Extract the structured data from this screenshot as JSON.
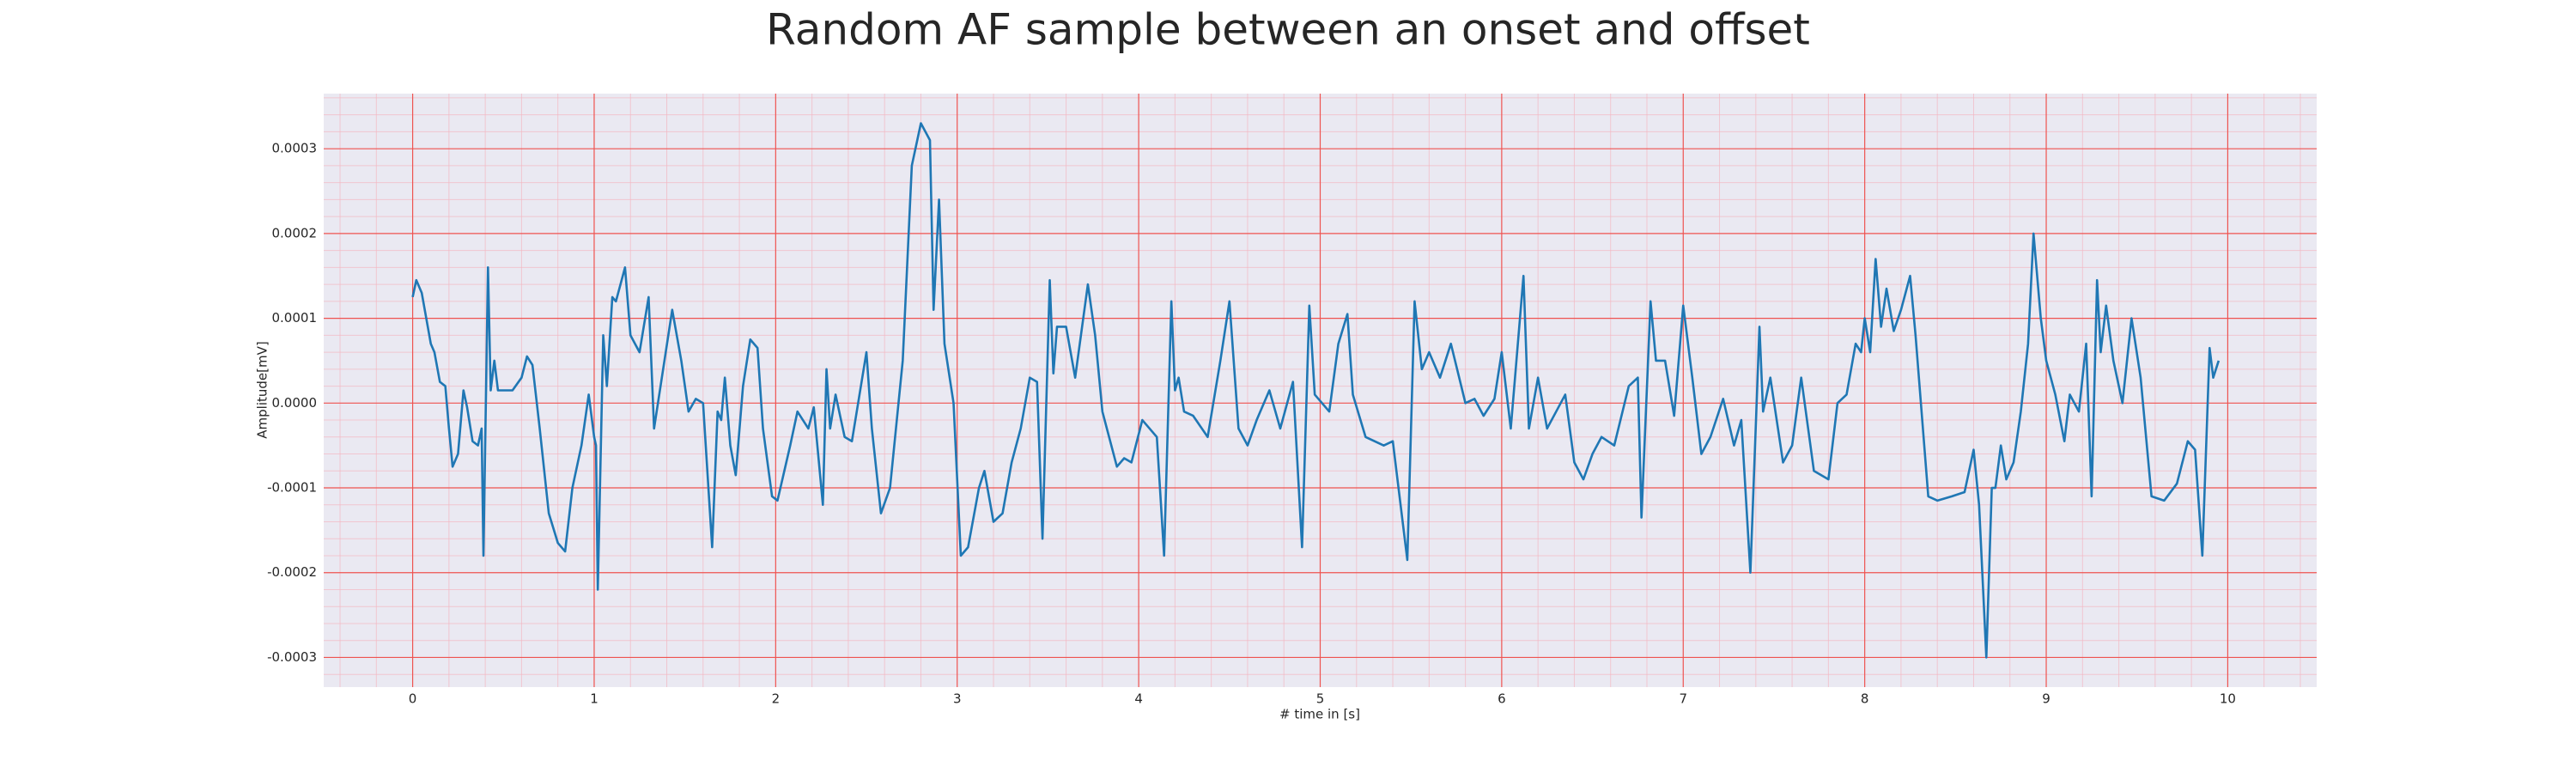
{
  "chart_data": {
    "type": "line",
    "title": "Random AF sample between an onset and offset",
    "xlabel": "# time in [s]",
    "ylabel": "Amplitude[mV]",
    "color": "#1f77b4",
    "grid": true,
    "minor_grid": true,
    "minor_divisions": 5,
    "xlim": [
      -0.49,
      10.49
    ],
    "ylim": [
      -0.000335,
      0.000365
    ],
    "xticks": [
      0,
      1,
      2,
      3,
      4,
      5,
      6,
      7,
      8,
      9,
      10
    ],
    "yticks": [
      -0.0003,
      -0.0002,
      -0.0001,
      {
        "value": 0,
        "label": "0.0000"
      },
      0.0001,
      0.0002,
      0.0003
    ],
    "x": [
      0,
      0.02,
      0.05,
      0.1,
      0.12,
      0.15,
      0.18,
      0.2,
      0.22,
      0.25,
      0.28,
      0.3,
      0.33,
      0.36,
      0.38,
      0.39,
      0.415,
      0.43,
      0.45,
      0.47,
      0.55,
      0.6,
      0.63,
      0.66,
      0.7,
      0.75,
      0.8,
      0.84,
      0.88,
      0.93,
      0.97,
      1.0,
      1.01,
      1.02,
      1.05,
      1.07,
      1.1,
      1.12,
      1.17,
      1.2,
      1.25,
      1.3,
      1.33,
      1.38,
      1.43,
      1.48,
      1.52,
      1.56,
      1.6,
      1.65,
      1.68,
      1.7,
      1.72,
      1.75,
      1.78,
      1.82,
      1.86,
      1.9,
      1.93,
      1.98,
      2.01,
      2.08,
      2.12,
      2.18,
      2.21,
      2.26,
      2.28,
      2.3,
      2.33,
      2.38,
      2.42,
      2.5,
      2.53,
      2.58,
      2.63,
      2.7,
      2.75,
      2.8,
      2.85,
      2.87,
      2.9,
      2.93,
      2.98,
      3.02,
      3.06,
      3.12,
      3.15,
      3.2,
      3.25,
      3.3,
      3.35,
      3.4,
      3.44,
      3.47,
      3.51,
      3.53,
      3.55,
      3.6,
      3.65,
      3.72,
      3.76,
      3.8,
      3.88,
      3.92,
      3.96,
      4.02,
      4.1,
      4.14,
      4.18,
      4.2,
      4.22,
      4.25,
      4.3,
      4.38,
      4.45,
      4.5,
      4.55,
      4.6,
      4.65,
      4.72,
      4.78,
      4.85,
      4.9,
      4.94,
      4.97,
      5.05,
      5.1,
      5.15,
      5.18,
      5.25,
      5.35,
      5.4,
      5.48,
      5.52,
      5.56,
      5.6,
      5.66,
      5.72,
      5.8,
      5.85,
      5.9,
      5.96,
      6.0,
      6.05,
      6.12,
      6.15,
      6.2,
      6.25,
      6.3,
      6.35,
      6.4,
      6.45,
      6.5,
      6.55,
      6.62,
      6.7,
      6.75,
      6.77,
      6.82,
      6.85,
      6.9,
      6.95,
      7.0,
      7.05,
      7.1,
      7.15,
      7.22,
      7.28,
      7.32,
      7.37,
      7.42,
      7.44,
      7.48,
      7.55,
      7.6,
      7.65,
      7.72,
      7.8,
      7.85,
      7.9,
      7.95,
      7.98,
      8.0,
      8.03,
      8.06,
      8.09,
      8.12,
      8.16,
      8.2,
      8.25,
      8.28,
      8.35,
      8.4,
      8.48,
      8.55,
      8.6,
      8.63,
      8.67,
      8.7,
      8.72,
      8.75,
      8.78,
      8.82,
      8.86,
      8.9,
      8.93,
      8.97,
      9.0,
      9.05,
      9.1,
      9.13,
      9.18,
      9.22,
      9.25,
      9.28,
      9.3,
      9.33,
      9.37,
      9.42,
      9.47,
      9.52,
      9.58,
      9.65,
      9.72,
      9.78,
      9.82,
      9.86,
      9.9,
      9.92,
      9.95
    ],
    "values": [
      0.000125,
      0.000145,
      0.00013,
      7e-05,
      6e-05,
      2.5e-05,
      2e-05,
      -3e-05,
      -7.5e-05,
      -6e-05,
      1.5e-05,
      -5e-06,
      -4.5e-05,
      -5e-05,
      -3e-05,
      -0.00018,
      0.00016,
      1.5e-05,
      5e-05,
      1.5e-05,
      1.5e-05,
      3e-05,
      5.5e-05,
      4.5e-05,
      -3e-05,
      -0.00013,
      -0.000165,
      -0.000175,
      -0.0001,
      -5e-05,
      1e-05,
      -4e-05,
      -5e-05,
      -0.00022,
      8e-05,
      2e-05,
      0.000125,
      0.00012,
      0.00016,
      8e-05,
      6e-05,
      0.000125,
      -3e-05,
      4e-05,
      0.00011,
      5e-05,
      -1e-05,
      5e-06,
      0,
      -0.00017,
      -1e-05,
      -2e-05,
      3e-05,
      -5e-05,
      -8.5e-05,
      2e-05,
      7.5e-05,
      6.5e-05,
      -3e-05,
      -0.00011,
      -0.000115,
      -5e-05,
      -1e-05,
      -3e-05,
      -5e-06,
      -0.00012,
      4e-05,
      -3e-05,
      1e-05,
      -4e-05,
      -4.5e-05,
      6e-05,
      -3e-05,
      -0.00013,
      -0.0001,
      5e-05,
      0.00028,
      0.00033,
      0.00031,
      0.00011,
      0.00024,
      7e-05,
      0,
      -0.00018,
      -0.00017,
      -0.0001,
      -8e-05,
      -0.00014,
      -0.00013,
      -7e-05,
      -3e-05,
      3e-05,
      2.5e-05,
      -0.00016,
      0.000145,
      3.5e-05,
      9e-05,
      9e-05,
      3e-05,
      0.00014,
      8e-05,
      -1e-05,
      -7.5e-05,
      -6.5e-05,
      -7e-05,
      -2e-05,
      -4e-05,
      -0.00018,
      0.00012,
      1.5e-05,
      3e-05,
      -1e-05,
      -1.5e-05,
      -4e-05,
      5e-05,
      0.00012,
      -3e-05,
      -5e-05,
      -2e-05,
      1.5e-05,
      -3e-05,
      2.5e-05,
      -0.00017,
      0.000115,
      1e-05,
      -1e-05,
      7e-05,
      0.000105,
      1e-05,
      -4e-05,
      -5e-05,
      -4.5e-05,
      -0.000185,
      0.00012,
      4e-05,
      6e-05,
      3e-05,
      7e-05,
      0,
      5e-06,
      -1.5e-05,
      5e-06,
      6e-05,
      -3e-05,
      0.00015,
      -3e-05,
      3e-05,
      -3e-05,
      -1e-05,
      1e-05,
      -7e-05,
      -9e-05,
      -6e-05,
      -4e-05,
      -5e-05,
      2e-05,
      3e-05,
      -0.000135,
      0.00012,
      5e-05,
      5e-05,
      -1.5e-05,
      0.000115,
      3e-05,
      -6e-05,
      -4e-05,
      5e-06,
      -5e-05,
      -2e-05,
      -0.0002,
      9e-05,
      -1e-05,
      3e-05,
      -7e-05,
      -5e-05,
      3e-05,
      -8e-05,
      -9e-05,
      0,
      1e-05,
      7e-05,
      6e-05,
      0.0001,
      6e-05,
      0.00017,
      9e-05,
      0.000135,
      8.5e-05,
      0.00011,
      0.00015,
      8e-05,
      -0.00011,
      -0.000115,
      -0.00011,
      -0.000105,
      -5.5e-05,
      -0.00012,
      -0.0003,
      -0.0001,
      -0.0001,
      -5e-05,
      -9e-05,
      -7e-05,
      -1e-05,
      7e-05,
      0.0002,
      0.0001,
      5e-05,
      1e-05,
      -4.5e-05,
      1e-05,
      -1e-05,
      7e-05,
      -0.00011,
      0.000145,
      6e-05,
      0.000115,
      5e-05,
      0,
      0.0001,
      3e-05,
      -0.00011,
      -0.000115,
      -9.5e-05,
      -4.5e-05,
      -5.5e-05,
      -0.00018,
      6.5e-05,
      3e-05,
      5e-05
    ]
  }
}
